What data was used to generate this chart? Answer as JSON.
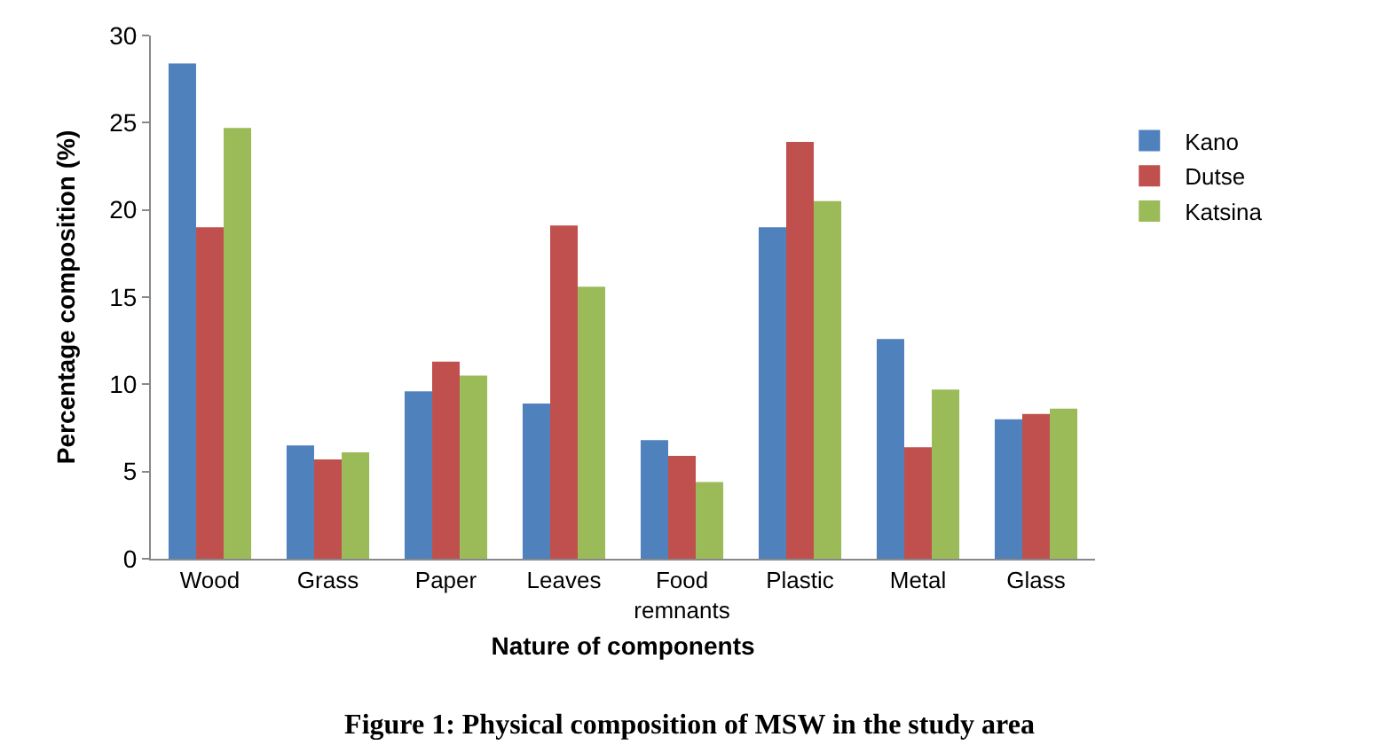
{
  "chart_data": {
    "type": "bar",
    "title": "Figure 1: Physical composition of MSW in the study area",
    "xlabel": "Nature of components",
    "ylabel": "Percentage composition (%)",
    "categories": [
      "Wood",
      "Grass",
      "Paper",
      "Leaves",
      "Food remnants",
      "Plastic",
      "Metal",
      "Glass"
    ],
    "series": [
      {
        "name": "Kano",
        "color": "#4f81bd",
        "values": [
          28.4,
          6.5,
          9.6,
          8.9,
          6.8,
          19.0,
          12.6,
          8.0
        ]
      },
      {
        "name": "Dutse",
        "color": "#c0504d",
        "values": [
          19.0,
          5.7,
          11.3,
          19.1,
          5.9,
          23.9,
          6.4,
          8.3
        ]
      },
      {
        "name": "Katsina",
        "color": "#9bbb59",
        "values": [
          24.7,
          6.1,
          10.5,
          15.6,
          4.4,
          20.5,
          9.7,
          8.6
        ]
      }
    ],
    "ylim": [
      0,
      30
    ],
    "yticks": [
      0,
      5,
      10,
      15,
      20,
      25,
      30
    ],
    "grid": false,
    "legend": "right"
  }
}
